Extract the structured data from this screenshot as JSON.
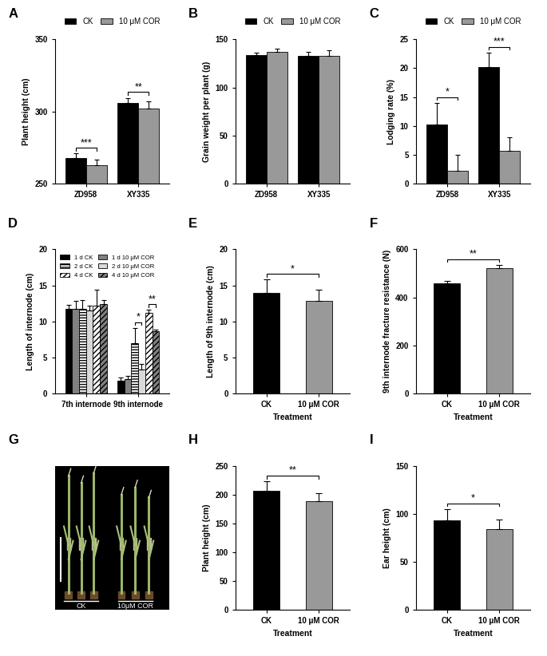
{
  "chart_data": [
    {
      "type": "bar",
      "title": "A",
      "ylabel": "Plant height (cm)",
      "categories": [
        "ZD958",
        "XY335"
      ],
      "series": [
        {
          "name": "CK",
          "color": "#000000",
          "values": [
            268,
            306
          ],
          "errors": [
            3,
            3.5
          ]
        },
        {
          "name": "10 μM COR",
          "color": "#999999",
          "values": [
            263,
            302
          ],
          "errors": [
            3.5,
            5
          ]
        }
      ],
      "ylim": [
        250,
        350
      ],
      "yticks": [
        250,
        300,
        350
      ],
      "legend": "upper center",
      "annotations": [
        {
          "category": "ZD958",
          "series": [
            "CK",
            "10 μM COR"
          ],
          "text": "***"
        },
        {
          "category": "XY335",
          "series": [
            "CK",
            "10 μM COR"
          ],
          "text": "**"
        }
      ]
    },
    {
      "type": "bar",
      "title": "B",
      "ylabel": "Grain weight per plant (g)",
      "categories": [
        "ZD958",
        "XY335"
      ],
      "series": [
        {
          "name": "CK",
          "color": "#000000",
          "values": [
            134,
            133
          ],
          "errors": [
            2,
            4
          ]
        },
        {
          "name": "10 μM COR",
          "color": "#999999",
          "values": [
            137,
            133
          ],
          "errors": [
            3,
            6
          ]
        }
      ],
      "ylim": [
        0,
        150
      ],
      "yticks": [
        0,
        50,
        100,
        150
      ],
      "legend": "upper center",
      "annotations": []
    },
    {
      "type": "bar",
      "title": "C",
      "ylabel": "Lodging rate (%)",
      "categories": [
        "ZD958",
        "XY335"
      ],
      "series": [
        {
          "name": "CK",
          "color": "#000000",
          "values": [
            10.2,
            20.2
          ],
          "errors": [
            3.8,
            2.5
          ]
        },
        {
          "name": "10 μM COR",
          "color": "#999999",
          "values": [
            2.2,
            5.7
          ],
          "errors": [
            2.8,
            2.3
          ]
        }
      ],
      "ylim": [
        0,
        25
      ],
      "yticks": [
        0,
        5,
        10,
        15,
        20,
        25
      ],
      "legend": "upper center",
      "annotations": [
        {
          "category": "ZD958",
          "series": [
            "CK",
            "10 μM COR"
          ],
          "text": "*"
        },
        {
          "category": "XY335",
          "series": [
            "CK",
            "10 μM COR"
          ],
          "text": "***"
        }
      ]
    },
    {
      "type": "bar",
      "title": "D",
      "ylabel": "Length of internode (cm)",
      "categories": [
        "7th internode",
        "9th internode"
      ],
      "series": [
        {
          "name": "1 d CK",
          "color": "#000000",
          "values": [
            11.7,
            1.8
          ],
          "errors": [
            0.6,
            0.4
          ]
        },
        {
          "name": "1 d 10 μM COR",
          "color": "#808080",
          "values": [
            11.8,
            2.0
          ],
          "errors": [
            1.0,
            0.4
          ]
        },
        {
          "name": "2 d CK",
          "color": "#ffffff",
          "values": [
            11.8,
            7.0
          ],
          "errors": [
            1.2,
            2.1
          ]
        },
        {
          "name": "2 d 10 μM COR",
          "color": "#d9d9d9",
          "values": [
            11.5,
            3.3
          ],
          "errors": [
            0.7,
            0.8
          ]
        },
        {
          "name": "4 d CK",
          "color": "#ffffff",
          "values": [
            12.2,
            11.2
          ],
          "errors": [
            2.2,
            0.4
          ]
        },
        {
          "name": "4 d 10 μM COR",
          "color": "#808080",
          "values": [
            12.4,
            8.6
          ],
          "errors": [
            0.6,
            0.3
          ]
        }
      ],
      "ylim": [
        0,
        20
      ],
      "yticks": [
        0,
        5,
        10,
        15,
        20
      ],
      "legend": "upper left",
      "annotations": [
        {
          "category": "9th internode",
          "series": [
            "2 d CK",
            "2 d 10 μM COR"
          ],
          "text": "*"
        },
        {
          "category": "9th internode",
          "series": [
            "4 d CK",
            "4 d 10 μM COR"
          ],
          "text": "**"
        }
      ]
    },
    {
      "type": "bar",
      "title": "E",
      "xlabel": "Treatment",
      "ylabel": "Length of 9th internode (cm)",
      "categories": [
        "CK",
        "10 μM COR"
      ],
      "values": [
        14.0,
        12.8
      ],
      "errors": [
        1.8,
        1.6
      ],
      "colors": [
        "#000000",
        "#999999"
      ],
      "ylim": [
        0,
        20
      ],
      "yticks": [
        0,
        5,
        10,
        15,
        20
      ],
      "annotations": [
        {
          "categories": [
            "CK",
            "10 μM COR"
          ],
          "text": "*"
        }
      ]
    },
    {
      "type": "bar",
      "title": "F",
      "xlabel": "Treatment",
      "ylabel": "9th internode fracture resistance (N)",
      "categories": [
        "CK",
        "10 μM COR"
      ],
      "values": [
        458,
        520
      ],
      "errors": [
        12,
        15
      ],
      "colors": [
        "#000000",
        "#999999"
      ],
      "ylim": [
        0,
        600
      ],
      "yticks": [
        0,
        200,
        400,
        600
      ],
      "annotations": [
        {
          "categories": [
            "CK",
            "10 μM COR"
          ],
          "text": "**"
        }
      ]
    },
    {
      "type": "image",
      "title": "G",
      "labels": [
        "CK",
        "10μM COR"
      ]
    },
    {
      "type": "bar",
      "title": "H",
      "xlabel": "Treatment",
      "ylabel": "Plant height (cm)",
      "categories": [
        "CK",
        "10 μM COR"
      ],
      "values": [
        206,
        188
      ],
      "errors": [
        17,
        15
      ],
      "colors": [
        "#000000",
        "#999999"
      ],
      "ylim": [
        0,
        250
      ],
      "yticks": [
        0,
        50,
        100,
        150,
        200,
        250
      ],
      "annotations": [
        {
          "categories": [
            "CK",
            "10 μM COR"
          ],
          "text": "**"
        }
      ]
    },
    {
      "type": "bar",
      "title": "I",
      "xlabel": "Treatment",
      "ylabel": "Ear height (cm)",
      "categories": [
        "CK",
        "10 μM COR"
      ],
      "values": [
        93,
        84
      ],
      "errors": [
        12,
        10
      ],
      "colors": [
        "#000000",
        "#999999"
      ],
      "ylim": [
        0,
        150
      ],
      "yticks": [
        0,
        50,
        100,
        150
      ],
      "annotations": [
        {
          "categories": [
            "CK",
            "10 μM COR"
          ],
          "text": "*"
        }
      ]
    }
  ]
}
